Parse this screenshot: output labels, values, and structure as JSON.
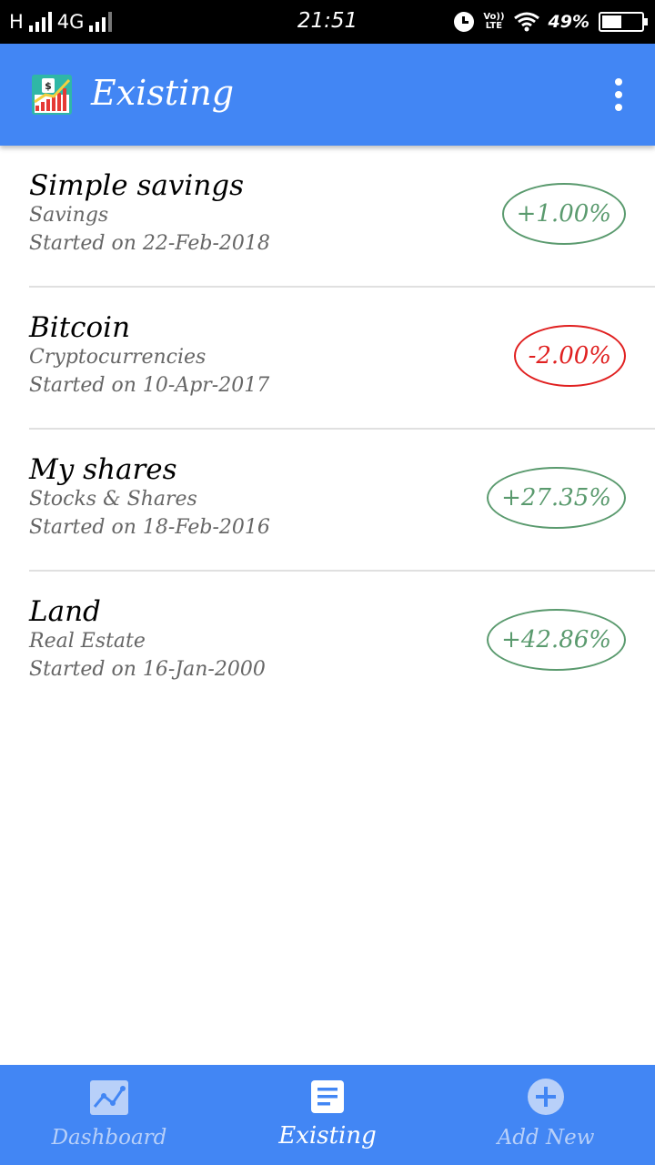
{
  "status_bar": {
    "network_h": "H",
    "network_4g": "4G",
    "time": "21:51",
    "volte_line1": "Vo))",
    "volte_line2": "LTE",
    "battery_percent": "49%",
    "battery_level": 0.49
  },
  "app_bar": {
    "title": "Existing",
    "logo_icon": "investment-chart-logo",
    "menu_icon": "more-vert-icon"
  },
  "investments": [
    {
      "name": "Simple savings",
      "category": "Savings",
      "started": "Started on 22-Feb-2018",
      "change": "+1.00%",
      "trend": "positive"
    },
    {
      "name": "Bitcoin",
      "category": "Cryptocurrencies",
      "started": "Started on 10-Apr-2017",
      "change": "-2.00%",
      "trend": "negative"
    },
    {
      "name": "My shares",
      "category": "Stocks & Shares",
      "started": "Started on 18-Feb-2016",
      "change": "+27.35%",
      "trend": "positive"
    },
    {
      "name": "Land",
      "category": "Real Estate",
      "started": "Started on 16-Jan-2000",
      "change": "+42.86%",
      "trend": "positive"
    }
  ],
  "colors": {
    "primary": "#4286f4",
    "positive": "#5a9a6e",
    "negative": "#e02020"
  },
  "bottom_nav": [
    {
      "label": "Dashboard",
      "icon": "line-chart-icon",
      "active": false
    },
    {
      "label": "Existing",
      "icon": "list-document-icon",
      "active": true
    },
    {
      "label": "Add New",
      "icon": "add-circle-icon",
      "active": false
    }
  ]
}
